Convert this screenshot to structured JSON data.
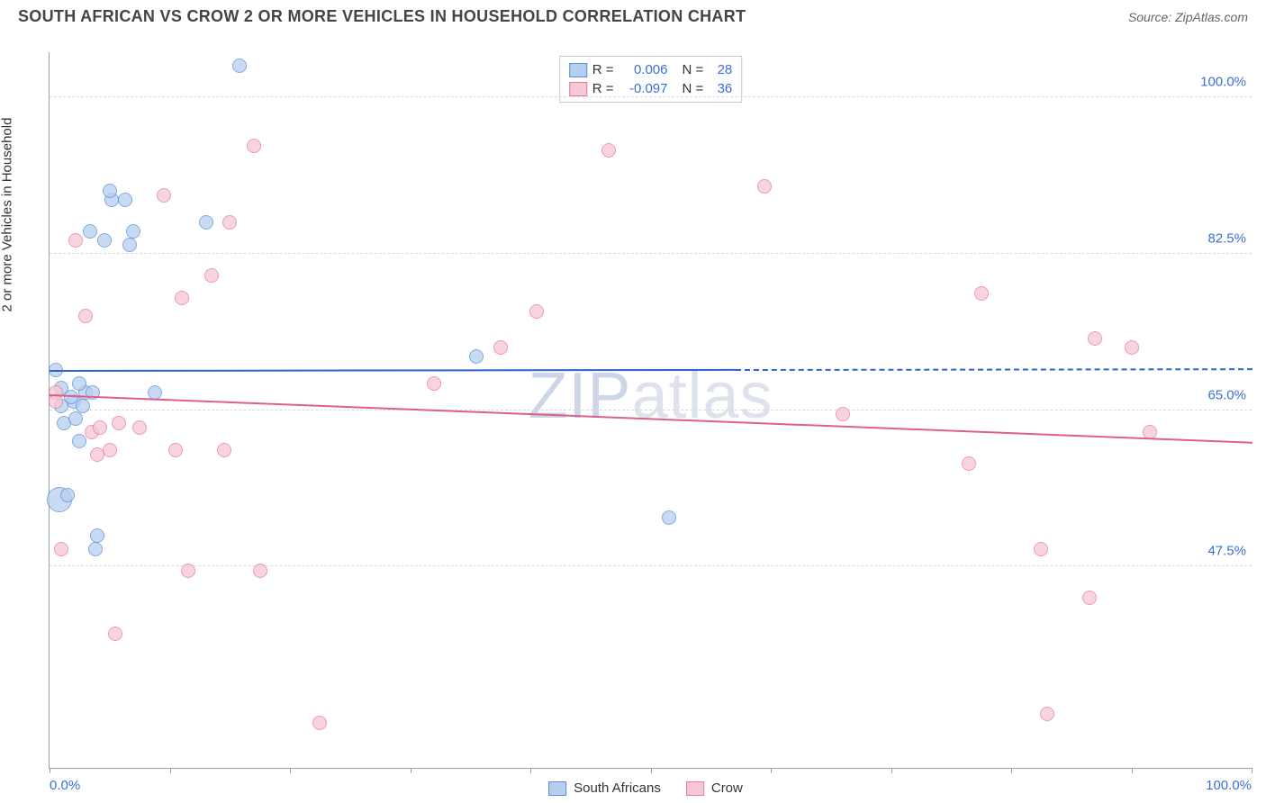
{
  "title": "SOUTH AFRICAN VS CROW 2 OR MORE VEHICLES IN HOUSEHOLD CORRELATION CHART",
  "source": "Source: ZipAtlas.com",
  "y_axis_label": "2 or more Vehicles in Household",
  "watermark": "ZIPatlas",
  "chart": {
    "type": "scatter",
    "background_color": "#ffffff",
    "grid_color": "#d8dbdf",
    "axis_color": "#9ba0a6",
    "xlim": [
      0,
      100
    ],
    "ylim": [
      25,
      105
    ],
    "x_ticks": [
      0,
      10,
      20,
      30,
      40,
      50,
      60,
      70,
      80,
      90,
      100
    ],
    "x_tick_labels": {
      "0": "0.0%",
      "100": "100.0%"
    },
    "y_gridlines": [
      47.5,
      65.0,
      82.5,
      100.0
    ],
    "y_tick_labels": [
      "47.5%",
      "65.0%",
      "82.5%",
      "100.0%"
    ],
    "label_color": "#3a6fd8",
    "label_fontsize": 15,
    "title_fontsize": 18,
    "title_color": "#444444",
    "series": [
      {
        "name": "South Africans",
        "fill": "#b6cfee",
        "stroke": "#5a8fd6",
        "trend_color": "#2e64c9",
        "r": 0.006,
        "n": 28,
        "trend_y_start": 69.5,
        "trend_y_end": 69.7,
        "trend_solid_until": 57,
        "default_radius": 8,
        "points": [
          {
            "x": 0.5,
            "y": 69.5,
            "r": 8
          },
          {
            "x": 1.0,
            "y": 67.5,
            "r": 8
          },
          {
            "x": 1.0,
            "y": 65.5,
            "r": 8
          },
          {
            "x": 1.2,
            "y": 63.5,
            "r": 8
          },
          {
            "x": 2.0,
            "y": 66.0,
            "r": 8
          },
          {
            "x": 2.8,
            "y": 65.5,
            "r": 8
          },
          {
            "x": 3.0,
            "y": 67.0,
            "r": 8
          },
          {
            "x": 0.8,
            "y": 55.0,
            "r": 14
          },
          {
            "x": 1.5,
            "y": 55.5,
            "r": 8
          },
          {
            "x": 2.5,
            "y": 61.5,
            "r": 8
          },
          {
            "x": 3.6,
            "y": 67.0,
            "r": 8
          },
          {
            "x": 3.4,
            "y": 85.0,
            "r": 8
          },
          {
            "x": 4.6,
            "y": 84.0,
            "r": 8
          },
          {
            "x": 5.2,
            "y": 88.5,
            "r": 8
          },
          {
            "x": 6.3,
            "y": 88.5,
            "r": 8
          },
          {
            "x": 5.0,
            "y": 89.5,
            "r": 8
          },
          {
            "x": 7.0,
            "y": 85.0,
            "r": 8
          },
          {
            "x": 6.7,
            "y": 83.5,
            "r": 8
          },
          {
            "x": 8.8,
            "y": 67.0,
            "r": 8
          },
          {
            "x": 13.0,
            "y": 86.0,
            "r": 8
          },
          {
            "x": 15.8,
            "y": 103.5,
            "r": 8
          },
          {
            "x": 35.5,
            "y": 71.0,
            "r": 8
          },
          {
            "x": 4.0,
            "y": 51.0,
            "r": 8
          },
          {
            "x": 3.8,
            "y": 49.5,
            "r": 8
          },
          {
            "x": 51.5,
            "y": 53.0,
            "r": 8
          },
          {
            "x": 2.2,
            "y": 64.0,
            "r": 8
          },
          {
            "x": 1.8,
            "y": 66.5,
            "r": 8
          },
          {
            "x": 2.5,
            "y": 68.0,
            "r": 8
          }
        ]
      },
      {
        "name": "Crow",
        "fill": "#f6c7d4",
        "stroke": "#e47a9a",
        "trend_color": "#de5f8a",
        "r": -0.097,
        "n": 36,
        "trend_y_start": 66.8,
        "trend_y_end": 61.5,
        "trend_solid_until": 100,
        "default_radius": 8,
        "points": [
          {
            "x": 0.5,
            "y": 67.0,
            "r": 8
          },
          {
            "x": 1.0,
            "y": 49.5,
            "r": 8
          },
          {
            "x": 0.5,
            "y": 66.0,
            "r": 8
          },
          {
            "x": 2.2,
            "y": 84.0,
            "r": 8
          },
          {
            "x": 3.0,
            "y": 75.5,
            "r": 8
          },
          {
            "x": 3.5,
            "y": 62.5,
            "r": 8
          },
          {
            "x": 4.2,
            "y": 63.0,
            "r": 8
          },
          {
            "x": 4.0,
            "y": 60.0,
            "r": 8
          },
          {
            "x": 5.0,
            "y": 60.5,
            "r": 8
          },
          {
            "x": 5.8,
            "y": 63.5,
            "r": 8
          },
          {
            "x": 7.5,
            "y": 63.0,
            "r": 8
          },
          {
            "x": 9.5,
            "y": 89.0,
            "r": 8
          },
          {
            "x": 10.5,
            "y": 60.5,
            "r": 8
          },
          {
            "x": 11.0,
            "y": 77.5,
            "r": 8
          },
          {
            "x": 11.5,
            "y": 47.0,
            "r": 8
          },
          {
            "x": 13.5,
            "y": 80.0,
            "r": 8
          },
          {
            "x": 14.5,
            "y": 60.5,
            "r": 8
          },
          {
            "x": 15.0,
            "y": 86.0,
            "r": 8
          },
          {
            "x": 17.0,
            "y": 94.5,
            "r": 8
          },
          {
            "x": 17.5,
            "y": 47.0,
            "r": 8
          },
          {
            "x": 5.5,
            "y": 40.0,
            "r": 8
          },
          {
            "x": 22.5,
            "y": 30.0,
            "r": 8
          },
          {
            "x": 32.0,
            "y": 68.0,
            "r": 8
          },
          {
            "x": 37.5,
            "y": 72.0,
            "r": 8
          },
          {
            "x": 40.5,
            "y": 76.0,
            "r": 8
          },
          {
            "x": 46.5,
            "y": 94.0,
            "r": 8
          },
          {
            "x": 59.5,
            "y": 90.0,
            "r": 8
          },
          {
            "x": 66.0,
            "y": 64.5,
            "r": 8
          },
          {
            "x": 76.5,
            "y": 59.0,
            "r": 8
          },
          {
            "x": 77.5,
            "y": 78.0,
            "r": 8
          },
          {
            "x": 82.5,
            "y": 49.5,
            "r": 8
          },
          {
            "x": 83.0,
            "y": 31.0,
            "r": 8
          },
          {
            "x": 86.5,
            "y": 44.0,
            "r": 8
          },
          {
            "x": 87.0,
            "y": 73.0,
            "r": 8
          },
          {
            "x": 90.0,
            "y": 72.0,
            "r": 8
          },
          {
            "x": 91.5,
            "y": 62.5,
            "r": 8
          }
        ]
      }
    ]
  }
}
